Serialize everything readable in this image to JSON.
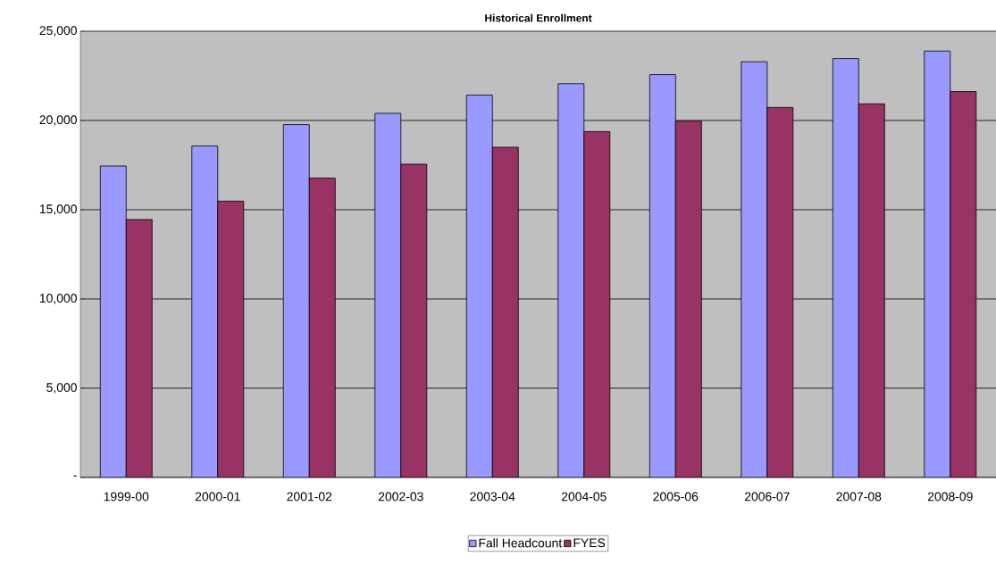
{
  "chart_data": {
    "type": "bar",
    "title": "Historical Enrollment",
    "categories": [
      "1999-00",
      "2000-01",
      "2001-02",
      "2002-03",
      "2003-04",
      "2004-05",
      "2005-06",
      "2006-07",
      "2007-08",
      "2008-09"
    ],
    "series": [
      {
        "name": "Fall Headcount",
        "color": "#9999ff",
        "values": [
          17450,
          18570,
          19770,
          20400,
          21420,
          22060,
          22570,
          23290,
          23470,
          23890
        ]
      },
      {
        "name": "FYES",
        "color": "#993366",
        "values": [
          14450,
          15480,
          16770,
          17550,
          18500,
          19380,
          19960,
          20730,
          20930,
          21620
        ]
      }
    ],
    "ylim": [
      0,
      25000
    ],
    "yticks": [
      {
        "value": 0,
        "label": "-"
      },
      {
        "value": 5000,
        "label": "5,000"
      },
      {
        "value": 10000,
        "label": "10,000"
      },
      {
        "value": 15000,
        "label": "15,000"
      },
      {
        "value": 20000,
        "label": "20,000"
      },
      {
        "value": 25000,
        "label": "25,000"
      }
    ],
    "grid": "y",
    "legend": "bottom"
  }
}
